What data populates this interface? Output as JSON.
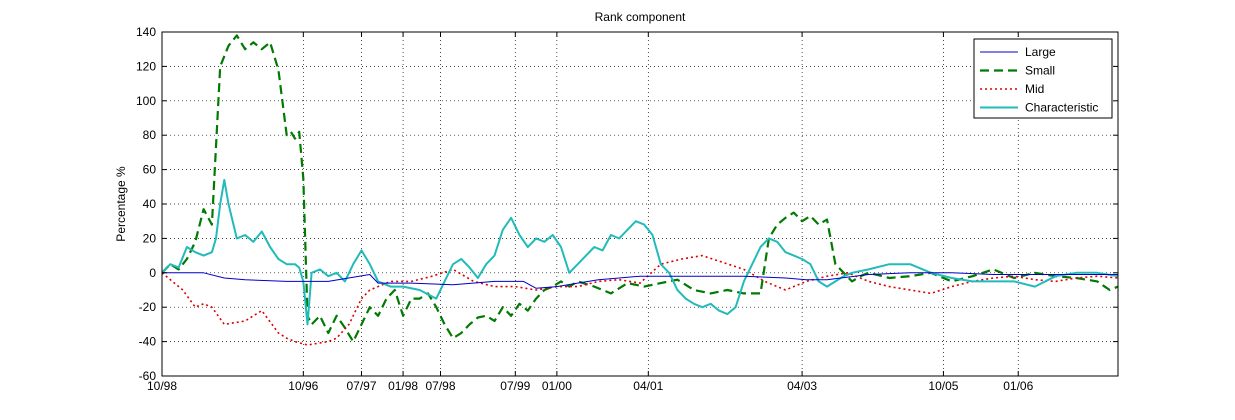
{
  "chart_data": {
    "type": "line",
    "title": "Rank component",
    "xlabel": "",
    "ylabel": "Percentage %",
    "xlim": [
      0,
      230
    ],
    "ylim": [
      -60,
      140
    ],
    "grid": true,
    "legend_position": "top-right",
    "yticks": [
      -60,
      -40,
      -20,
      0,
      20,
      40,
      60,
      80,
      100,
      120,
      140
    ],
    "xticks": [
      {
        "x": 0,
        "label": "10/98"
      },
      {
        "x": 34,
        "label": "10/96"
      },
      {
        "x": 48,
        "label": "07/97"
      },
      {
        "x": 58,
        "label": "01/98"
      },
      {
        "x": 67,
        "label": "07/98"
      },
      {
        "x": 85,
        "label": "07/99"
      },
      {
        "x": 95,
        "label": "01/00"
      },
      {
        "x": 117,
        "label": "04/01"
      },
      {
        "x": 154,
        "label": "04/03"
      },
      {
        "x": 188,
        "label": "10/05"
      },
      {
        "x": 206,
        "label": "01/06"
      }
    ],
    "series": [
      {
        "name": "Large",
        "color": "#0000cc",
        "style": "solid",
        "x": [
          0,
          10,
          15,
          20,
          30,
          40,
          50,
          52,
          60,
          70,
          80,
          87,
          90,
          95,
          100,
          105,
          110,
          115,
          120,
          130,
          140,
          150,
          155,
          160,
          170,
          180,
          190,
          200,
          210,
          220,
          230
        ],
        "y": [
          0,
          0,
          -3,
          -4,
          -5,
          -5,
          -1,
          -6,
          -6,
          -7,
          -5,
          -5,
          -9,
          -8,
          -6,
          -4,
          -3,
          -2,
          -2,
          -2,
          -2,
          -3,
          -4,
          -4,
          -1,
          0,
          0,
          -1,
          -1,
          -1,
          -1
        ]
      },
      {
        "name": "Small",
        "color": "#007a00",
        "style": "dashed",
        "x": [
          0,
          2,
          4,
          6,
          8,
          10,
          12,
          14,
          16,
          18,
          20,
          22,
          24,
          26,
          28,
          30,
          31,
          32,
          33,
          34,
          35,
          36,
          38,
          40,
          42,
          44,
          46,
          48,
          50,
          52,
          54,
          56,
          58,
          60,
          62,
          64,
          66,
          68,
          70,
          72,
          74,
          76,
          78,
          80,
          82,
          84,
          86,
          88,
          90,
          92,
          94,
          96,
          98,
          100,
          104,
          108,
          112,
          116,
          120,
          124,
          128,
          132,
          136,
          140,
          144,
          146,
          148,
          150,
          152,
          154,
          156,
          158,
          160,
          162,
          164,
          166,
          168,
          170,
          175,
          180,
          185,
          190,
          195,
          200,
          205,
          210,
          215,
          220,
          225,
          228,
          230
        ],
        "y": [
          0,
          5,
          2,
          8,
          18,
          37,
          28,
          120,
          132,
          138,
          130,
          134,
          130,
          134,
          118,
          80,
          82,
          78,
          82,
          55,
          -25,
          -30,
          -25,
          -35,
          -25,
          -32,
          -40,
          -30,
          -20,
          -25,
          -15,
          -10,
          -25,
          -15,
          -15,
          -12,
          -20,
          -30,
          -38,
          -35,
          -30,
          -26,
          -25,
          -28,
          -20,
          -25,
          -18,
          -22,
          -15,
          -10,
          -8,
          -5,
          -8,
          -5,
          -8,
          -12,
          -6,
          -8,
          -6,
          -4,
          -10,
          -12,
          -10,
          -12,
          -12,
          20,
          28,
          32,
          35,
          30,
          33,
          28,
          31,
          5,
          0,
          -5,
          -2,
          0,
          -3,
          -2,
          0,
          -5,
          -2,
          2,
          -3,
          0,
          -2,
          -3,
          -5,
          -10,
          -8
        ]
      },
      {
        "name": "Mid",
        "color": "#dd0000",
        "style": "dotted",
        "x": [
          0,
          5,
          8,
          10,
          12,
          15,
          20,
          22,
          24,
          28,
          30,
          32,
          35,
          40,
          42,
          45,
          48,
          50,
          55,
          60,
          65,
          70,
          75,
          80,
          85,
          90,
          95,
          100,
          105,
          110,
          115,
          120,
          125,
          130,
          135,
          140,
          145,
          150,
          155,
          160,
          165,
          170,
          175,
          180,
          185,
          190,
          195,
          200,
          205,
          210,
          215,
          220,
          225,
          230
        ],
        "y": [
          0,
          -10,
          -20,
          -18,
          -20,
          -30,
          -28,
          -25,
          -22,
          -35,
          -38,
          -40,
          -42,
          -40,
          -38,
          -30,
          -15,
          -10,
          -5,
          -5,
          -2,
          2,
          -5,
          -8,
          -8,
          -10,
          -8,
          -8,
          -5,
          -4,
          -6,
          5,
          8,
          10,
          6,
          2,
          -5,
          -10,
          -5,
          -2,
          0,
          -5,
          -8,
          -10,
          -12,
          -8,
          -5,
          -3,
          -2,
          -4,
          -5,
          -3,
          -2,
          -3
        ]
      },
      {
        "name": "Characteristic",
        "color": "#22bbbb",
        "style": "solid",
        "x": [
          0,
          2,
          4,
          6,
          8,
          10,
          12,
          13,
          14,
          15,
          16,
          18,
          20,
          22,
          24,
          26,
          28,
          30,
          32,
          33,
          34,
          35,
          36,
          38,
          40,
          42,
          44,
          46,
          48,
          50,
          52,
          55,
          58,
          62,
          66,
          68,
          70,
          72,
          74,
          76,
          78,
          80,
          82,
          84,
          86,
          88,
          90,
          92,
          94,
          96,
          98,
          100,
          102,
          104,
          106,
          108,
          110,
          112,
          114,
          116,
          118,
          120,
          122,
          124,
          126,
          128,
          130,
          132,
          134,
          136,
          138,
          140,
          142,
          144,
          146,
          148,
          150,
          152,
          154,
          156,
          158,
          160,
          162,
          164,
          166,
          170,
          175,
          180,
          185,
          190,
          195,
          200,
          205,
          210,
          215,
          220,
          225,
          230
        ],
        "y": [
          0,
          5,
          3,
          15,
          12,
          10,
          12,
          20,
          40,
          54,
          40,
          20,
          22,
          18,
          24,
          15,
          8,
          5,
          5,
          3,
          -5,
          -30,
          0,
          2,
          -2,
          0,
          -5,
          5,
          13,
          5,
          -5,
          -8,
          -8,
          -10,
          -15,
          -5,
          5,
          8,
          3,
          -3,
          5,
          10,
          25,
          32,
          22,
          15,
          20,
          18,
          22,
          15,
          0,
          5,
          10,
          15,
          13,
          22,
          20,
          25,
          30,
          28,
          22,
          5,
          0,
          -10,
          -15,
          -18,
          -20,
          -18,
          -22,
          -24,
          -20,
          -5,
          5,
          15,
          20,
          18,
          12,
          10,
          8,
          5,
          -5,
          -8,
          -5,
          -2,
          0,
          2,
          5,
          5,
          0,
          -3,
          -5,
          -5,
          -5,
          -8,
          -2,
          0,
          0,
          -2
        ]
      }
    ]
  }
}
